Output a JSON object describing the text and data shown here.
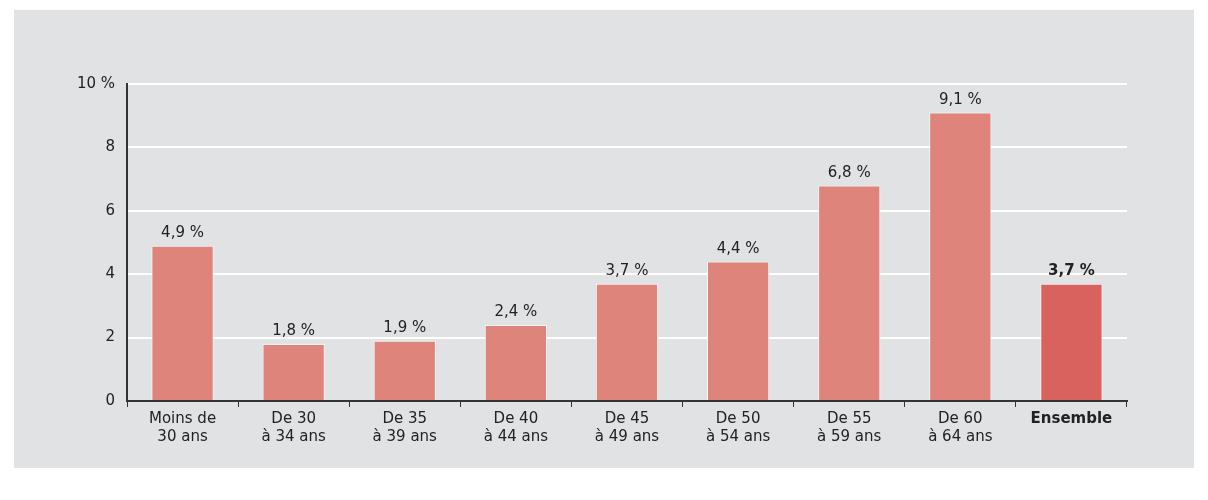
{
  "chart_data": {
    "type": "bar",
    "categories": [
      "Moins de\n30 ans",
      "De 30\nà 34 ans",
      "De 35\nà 39 ans",
      "De 40\nà 44 ans",
      "De 45\nà 49 ans",
      "De 50\nà 54 ans",
      "De 55\nà 59 ans",
      "De 60\nà 64 ans",
      "Ensemble"
    ],
    "values": [
      4.9,
      1.8,
      1.9,
      2.4,
      3.7,
      4.4,
      6.8,
      9.1,
      3.7
    ],
    "colors": [
      "#de847a",
      "#de847a",
      "#de847a",
      "#de847a",
      "#de847a",
      "#de847a",
      "#de847a",
      "#de847a",
      "#d9625f"
    ],
    "value_labels": [
      "4,9 %",
      "1,8 %",
      "1,9 %",
      "2,4 %",
      "3,7 %",
      "4,4 %",
      "6,8 %",
      "9,1 %",
      "3,7 %"
    ],
    "ylim": [
      0,
      10
    ],
    "yticks": [
      0,
      2,
      4,
      6,
      8,
      {
        "value": 10,
        "label": "10 %"
      }
    ],
    "grid": "y"
  }
}
